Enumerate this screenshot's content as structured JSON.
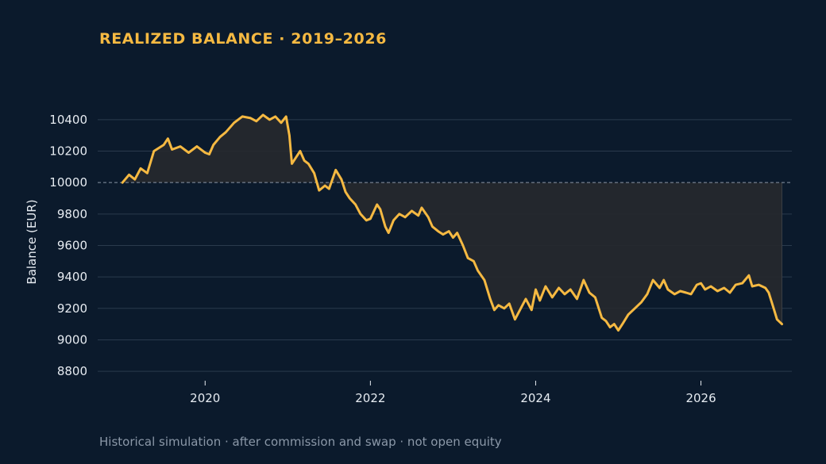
{
  "title": "REALIZED BALANCE · 2019–2026",
  "footnote": "Historical simulation · after commission and swap · not open equity",
  "colors": {
    "background": "#0b1a2c",
    "line": "#f5b942",
    "grid": "#2a3a4d",
    "baseline": "#8a96a6",
    "fill": "#26292d"
  },
  "chart_data": {
    "type": "line",
    "title": "REALIZED BALANCE · 2019–2026",
    "xlabel": "",
    "ylabel": "Balance (EUR)",
    "xlim": [
      2018.7,
      2027.1
    ],
    "ylim": [
      8740,
      10480
    ],
    "x_ticks": [
      2020,
      2022,
      2024,
      2026
    ],
    "y_ticks": [
      8800,
      9000,
      9200,
      9400,
      9600,
      9800,
      10000,
      10200,
      10400
    ],
    "baseline": 10000,
    "grid": true,
    "legend": "none",
    "series": [
      {
        "values": [
          [
            2019.0,
            10000
          ],
          [
            2019.08,
            10050
          ],
          [
            2019.15,
            10020
          ],
          [
            2019.22,
            10090
          ],
          [
            2019.3,
            10060
          ],
          [
            2019.38,
            10200
          ],
          [
            2019.5,
            10240
          ],
          [
            2019.55,
            10280
          ],
          [
            2019.6,
            10210
          ],
          [
            2019.7,
            10230
          ],
          [
            2019.8,
            10190
          ],
          [
            2019.9,
            10230
          ],
          [
            2020.0,
            10190
          ],
          [
            2020.05,
            10180
          ],
          [
            2020.1,
            10240
          ],
          [
            2020.18,
            10290
          ],
          [
            2020.25,
            10320
          ],
          [
            2020.35,
            10380
          ],
          [
            2020.45,
            10420
          ],
          [
            2020.55,
            10410
          ],
          [
            2020.62,
            10390
          ],
          [
            2020.7,
            10430
          ],
          [
            2020.78,
            10400
          ],
          [
            2020.85,
            10420
          ],
          [
            2020.92,
            10380
          ],
          [
            2020.98,
            10420
          ],
          [
            2021.02,
            10300
          ],
          [
            2021.05,
            10120
          ],
          [
            2021.1,
            10160
          ],
          [
            2021.15,
            10200
          ],
          [
            2021.2,
            10140
          ],
          [
            2021.25,
            10120
          ],
          [
            2021.32,
            10060
          ],
          [
            2021.38,
            9950
          ],
          [
            2021.45,
            9980
          ],
          [
            2021.5,
            9960
          ],
          [
            2021.58,
            10080
          ],
          [
            2021.65,
            10020
          ],
          [
            2021.7,
            9940
          ],
          [
            2021.75,
            9900
          ],
          [
            2021.82,
            9860
          ],
          [
            2021.88,
            9800
          ],
          [
            2021.95,
            9760
          ],
          [
            2022.0,
            9770
          ],
          [
            2022.08,
            9860
          ],
          [
            2022.12,
            9830
          ],
          [
            2022.18,
            9720
          ],
          [
            2022.22,
            9680
          ],
          [
            2022.28,
            9760
          ],
          [
            2022.35,
            9800
          ],
          [
            2022.42,
            9780
          ],
          [
            2022.5,
            9820
          ],
          [
            2022.58,
            9790
          ],
          [
            2022.62,
            9840
          ],
          [
            2022.7,
            9780
          ],
          [
            2022.75,
            9720
          ],
          [
            2022.82,
            9690
          ],
          [
            2022.88,
            9670
          ],
          [
            2022.95,
            9690
          ],
          [
            2023.0,
            9650
          ],
          [
            2023.05,
            9680
          ],
          [
            2023.12,
            9600
          ],
          [
            2023.18,
            9520
          ],
          [
            2023.25,
            9500
          ],
          [
            2023.3,
            9440
          ],
          [
            2023.38,
            9380
          ],
          [
            2023.45,
            9260
          ],
          [
            2023.5,
            9190
          ],
          [
            2023.55,
            9220
          ],
          [
            2023.62,
            9200
          ],
          [
            2023.68,
            9230
          ],
          [
            2023.75,
            9130
          ],
          [
            2023.82,
            9200
          ],
          [
            2023.88,
            9260
          ],
          [
            2023.95,
            9190
          ],
          [
            2024.0,
            9320
          ],
          [
            2024.05,
            9250
          ],
          [
            2024.12,
            9340
          ],
          [
            2024.2,
            9270
          ],
          [
            2024.28,
            9330
          ],
          [
            2024.35,
            9290
          ],
          [
            2024.42,
            9320
          ],
          [
            2024.5,
            9260
          ],
          [
            2024.58,
            9380
          ],
          [
            2024.65,
            9300
          ],
          [
            2024.72,
            9270
          ],
          [
            2024.8,
            9140
          ],
          [
            2024.85,
            9120
          ],
          [
            2024.9,
            9080
          ],
          [
            2024.95,
            9100
          ],
          [
            2025.0,
            9060
          ],
          [
            2025.05,
            9100
          ],
          [
            2025.12,
            9160
          ],
          [
            2025.2,
            9200
          ],
          [
            2025.28,
            9240
          ],
          [
            2025.35,
            9290
          ],
          [
            2025.42,
            9380
          ],
          [
            2025.5,
            9330
          ],
          [
            2025.55,
            9380
          ],
          [
            2025.6,
            9320
          ],
          [
            2025.68,
            9290
          ],
          [
            2025.75,
            9310
          ],
          [
            2025.82,
            9300
          ],
          [
            2025.88,
            9290
          ],
          [
            2025.95,
            9350
          ],
          [
            2026.0,
            9360
          ],
          [
            2026.05,
            9320
          ],
          [
            2026.12,
            9340
          ],
          [
            2026.2,
            9310
          ],
          [
            2026.28,
            9330
          ],
          [
            2026.35,
            9300
          ],
          [
            2026.42,
            9350
          ],
          [
            2026.5,
            9360
          ],
          [
            2026.58,
            9410
          ],
          [
            2026.62,
            9340
          ],
          [
            2026.7,
            9350
          ],
          [
            2026.78,
            9330
          ],
          [
            2026.82,
            9300
          ],
          [
            2026.88,
            9200
          ],
          [
            2026.92,
            9130
          ],
          [
            2026.98,
            9100
          ]
        ]
      }
    ]
  }
}
